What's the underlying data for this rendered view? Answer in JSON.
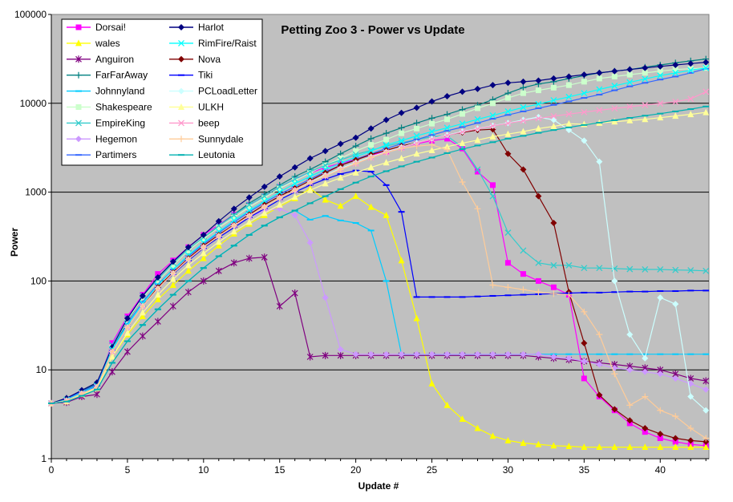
{
  "chart_data": {
    "type": "line",
    "title": "Petting Zoo 3 - Power vs Update",
    "xlabel": "Update #",
    "ylabel": "Power",
    "y_scale": "log",
    "xlim": [
      0,
      43.2
    ],
    "ylim": [
      1,
      100000
    ],
    "x_ticks": [
      "0",
      "5",
      "10",
      "15",
      "20",
      "25",
      "30",
      "35",
      "40"
    ],
    "y_ticks": [
      "1",
      "10",
      "100",
      "1000",
      "10000",
      "100000"
    ],
    "plot_background": "#c0c0c0",
    "grid": "major horizontal",
    "legend_position": "top-left",
    "series": [
      {
        "name": "Dorsai!",
        "color": "#ff00ff",
        "marker": "square",
        "values": [
          4.2,
          4.5,
          5.4,
          6.5,
          20,
          40,
          70,
          120,
          170,
          240,
          330,
          430,
          560,
          720,
          900,
          1150,
          1400,
          1650,
          1900,
          2100,
          2350,
          2600,
          2850,
          3200,
          3500,
          3800,
          4000,
          3100,
          1700,
          1200,
          160,
          120,
          100,
          85,
          70,
          8,
          5,
          3.5,
          2.5,
          2,
          1.7,
          1.55,
          1.45,
          1.4
        ]
      },
      {
        "name": "wales",
        "color": "#ffff00",
        "marker": "triangle",
        "values": [
          4.2,
          4.4,
          5.3,
          6.2,
          14,
          25,
          40,
          62,
          90,
          130,
          180,
          250,
          340,
          440,
          550,
          690,
          850,
          1100,
          820,
          700,
          900,
          680,
          550,
          170,
          38,
          7,
          4,
          2.8,
          2.2,
          1.8,
          1.6,
          1.5,
          1.45,
          1.4,
          1.38,
          1.35,
          1.35,
          1.35,
          1.35,
          1.35,
          1.35,
          1.35,
          1.35,
          1.35
        ]
      },
      {
        "name": "Anguiron",
        "color": "#800080",
        "marker": "star",
        "values": [
          4.2,
          4.3,
          5,
          5.3,
          9.5,
          16,
          24,
          35,
          52,
          75,
          100,
          130,
          160,
          180,
          185,
          52,
          73,
          14,
          14.5,
          14.5,
          14.5,
          14.5,
          14.5,
          14.5,
          14.5,
          14.5,
          14.5,
          14.5,
          14.5,
          14.5,
          14.5,
          14.5,
          14,
          13.5,
          13,
          12.5,
          12,
          11.5,
          11,
          10.5,
          10,
          9,
          8,
          7.5
        ]
      },
      {
        "name": "FarFarAway",
        "color": "#008080",
        "marker": "plus",
        "values": [
          4.2,
          4.8,
          5.8,
          7,
          17,
          35,
          65,
          100,
          150,
          220,
          300,
          420,
          560,
          750,
          950,
          1200,
          1500,
          1800,
          2200,
          2700,
          3300,
          4000,
          4600,
          5300,
          6000,
          6800,
          7500,
          8500,
          9500,
          11000,
          13000,
          15000,
          16500,
          17500,
          19000,
          20500,
          22000,
          23000,
          24000,
          25500,
          27000,
          28500,
          30000,
          31500
        ]
      },
      {
        "name": "Johnnyland",
        "color": "#00ccff",
        "marker": "dash",
        "values": [
          4.2,
          4.4,
          5.1,
          6,
          12,
          21,
          32,
          48,
          70,
          100,
          140,
          190,
          250,
          330,
          420,
          520,
          620,
          490,
          540,
          480,
          450,
          370,
          100,
          15,
          15,
          15,
          15,
          15,
          15,
          15,
          15,
          15,
          15,
          15,
          15,
          15,
          15,
          15,
          15,
          15,
          15,
          15,
          15,
          15
        ]
      },
      {
        "name": "Shakespeare",
        "color": "#ccffcc",
        "marker": "square",
        "values": [
          4.2,
          4.5,
          5.5,
          6.6,
          18,
          36,
          65,
          100,
          150,
          220,
          300,
          400,
          520,
          680,
          860,
          1100,
          1350,
          1650,
          2000,
          2400,
          2900,
          3400,
          3900,
          4600,
          5200,
          5900,
          6600,
          7600,
          8800,
          10000,
          11500,
          13000,
          14000,
          15000,
          16000,
          17500,
          19000,
          20000,
          21000,
          22000,
          23000,
          24000,
          24500,
          25000
        ]
      },
      {
        "name": "EmpireKing",
        "color": "#33cccc",
        "marker": "x",
        "values": [
          4.2,
          4.6,
          5.6,
          6.8,
          19,
          38,
          68,
          105,
          160,
          230,
          310,
          420,
          550,
          720,
          900,
          1150,
          1400,
          1700,
          2000,
          2300,
          2650,
          2950,
          3300,
          3600,
          3900,
          4200,
          4300,
          3200,
          1800,
          900,
          350,
          220,
          160,
          150,
          150,
          140,
          140,
          138,
          136,
          135,
          135,
          133,
          132,
          130
        ]
      },
      {
        "name": "Hegemon",
        "color": "#cc99ff",
        "marker": "diamond",
        "values": [
          4.2,
          4.5,
          5.4,
          6.3,
          16,
          30,
          52,
          85,
          125,
          180,
          250,
          330,
          420,
          520,
          620,
          650,
          550,
          270,
          65,
          17,
          15,
          15,
          15,
          15,
          15,
          15,
          15,
          15,
          15,
          15,
          15,
          15,
          15,
          14,
          13.5,
          12.5,
          11.5,
          10.5,
          10,
          9.5,
          9,
          8,
          7,
          6
        ]
      },
      {
        "name": "Partimers",
        "color": "#3366ff",
        "marker": "dash",
        "values": [
          4.2,
          4.7,
          5.7,
          6.8,
          17,
          33,
          58,
          92,
          135,
          190,
          260,
          350,
          460,
          600,
          760,
          950,
          1150,
          1400,
          1700,
          2000,
          2350,
          2700,
          3100,
          3500,
          3900,
          4400,
          4900,
          5400,
          6000,
          6700,
          7400,
          8100,
          8800,
          9600,
          10500,
          11500,
          12500,
          14000,
          15500,
          17000,
          18500,
          20000,
          22000,
          24500
        ]
      },
      {
        "name": "Harlot",
        "color": "#000080",
        "marker": "diamond",
        "values": [
          4.2,
          4.8,
          5.9,
          7.2,
          18,
          38,
          68,
          110,
          165,
          240,
          330,
          470,
          650,
          870,
          1150,
          1500,
          1900,
          2400,
          2900,
          3500,
          4100,
          5200,
          6500,
          7800,
          8900,
          10500,
          12000,
          13500,
          14500,
          16000,
          17000,
          17500,
          18000,
          19000,
          20000,
          21000,
          22000,
          23000,
          24000,
          25000,
          26000,
          27000,
          28000,
          29000
        ]
      },
      {
        "name": "RimFire/Raist",
        "color": "#00ffff",
        "marker": "x",
        "values": [
          4.2,
          4.6,
          5.5,
          6.6,
          17,
          32,
          56,
          90,
          135,
          195,
          270,
          360,
          480,
          620,
          790,
          1000,
          1250,
          1500,
          1800,
          2100,
          2500,
          2900,
          3400,
          3800,
          4300,
          4800,
          5300,
          5900,
          6600,
          7300,
          8100,
          9000,
          9800,
          10800,
          11800,
          13000,
          14300,
          15700,
          17200,
          18800,
          20500,
          22000,
          23500,
          25000
        ]
      },
      {
        "name": "Nova",
        "color": "#800000",
        "marker": "diamond",
        "values": [
          4.2,
          4.5,
          5.4,
          6.4,
          16,
          30,
          52,
          85,
          125,
          180,
          250,
          330,
          430,
          560,
          720,
          900,
          1100,
          1350,
          1650,
          2000,
          2300,
          2650,
          2950,
          3300,
          3600,
          4000,
          4400,
          4700,
          5000,
          5100,
          2700,
          1800,
          900,
          450,
          75,
          20,
          5.2,
          3.6,
          2.7,
          2.2,
          1.9,
          1.7,
          1.6,
          1.55
        ]
      },
      {
        "name": "Tiki",
        "color": "#0000ff",
        "marker": "dash",
        "values": [
          4.2,
          4.5,
          5.4,
          6.5,
          16,
          30,
          52,
          82,
          120,
          170,
          235,
          310,
          400,
          520,
          650,
          820,
          1000,
          1200,
          1400,
          1600,
          1750,
          1700,
          1200,
          600,
          66,
          66,
          66,
          66,
          67,
          68,
          69,
          70,
          71,
          72,
          73,
          74,
          74,
          75,
          76,
          76,
          77,
          77,
          78,
          78
        ]
      },
      {
        "name": "PCLoadLetter",
        "color": "#ccffff",
        "marker": "diamond",
        "values": [
          4.2,
          4.5,
          5.4,
          6.4,
          16,
          30,
          52,
          82,
          122,
          175,
          240,
          320,
          420,
          540,
          680,
          860,
          1050,
          1300,
          1550,
          1850,
          2150,
          2500,
          2850,
          3200,
          3600,
          4000,
          4400,
          4800,
          5200,
          5600,
          6000,
          6500,
          7000,
          6500,
          5000,
          3800,
          2200,
          100,
          25,
          13.5,
          65,
          55,
          5,
          3.5
        ]
      },
      {
        "name": "ULKH",
        "color": "#ffff99",
        "marker": "triangle",
        "values": [
          4.2,
          4.4,
          5.3,
          6.2,
          14,
          26,
          44,
          70,
          105,
          150,
          205,
          275,
          360,
          460,
          580,
          720,
          880,
          1050,
          1250,
          1450,
          1650,
          1900,
          2150,
          2400,
          2700,
          2950,
          3250,
          3550,
          3850,
          4200,
          4500,
          4800,
          5200,
          5500,
          5900,
          5800,
          6000,
          6200,
          6400,
          6600,
          6900,
          7200,
          7500,
          7900
        ]
      },
      {
        "name": "beep",
        "color": "#ff99cc",
        "marker": "x",
        "values": [
          4.2,
          4.5,
          5.4,
          6.4,
          16,
          30,
          52,
          82,
          122,
          175,
          240,
          320,
          420,
          540,
          680,
          860,
          1050,
          1280,
          1520,
          1800,
          2100,
          2450,
          2800,
          3150,
          3550,
          3950,
          4350,
          4750,
          5150,
          5550,
          5950,
          6350,
          6750,
          7150,
          7550,
          7950,
          8350,
          8750,
          9150,
          9550,
          9950,
          10400,
          11200,
          13500
        ]
      },
      {
        "name": "Sunnydale",
        "color": "#ffcc99",
        "marker": "plus",
        "values": [
          4.2,
          4.5,
          5.4,
          6.4,
          16,
          30,
          52,
          82,
          122,
          175,
          240,
          320,
          420,
          540,
          680,
          860,
          1050,
          1280,
          1520,
          1800,
          2100,
          2450,
          2800,
          3100,
          3300,
          3400,
          3000,
          1300,
          650,
          90,
          85,
          80,
          75,
          72,
          70,
          45,
          25,
          9,
          4,
          5,
          3.5,
          3,
          2.2,
          1.7
        ]
      },
      {
        "name": "Leutonia",
        "color": "#00b0b0",
        "marker": "dash",
        "values": [
          4.2,
          4.4,
          5.1,
          6,
          12,
          21,
          32,
          48,
          70,
          100,
          140,
          190,
          250,
          330,
          420,
          520,
          620,
          750,
          900,
          1080,
          1280,
          1500,
          1720,
          1950,
          2200,
          2450,
          2750,
          3050,
          3350,
          3650,
          4000,
          4300,
          4650,
          5000,
          5350,
          5700,
          6050,
          6450,
          6850,
          7250,
          7650,
          8100,
          8600,
          9200
        ]
      }
    ]
  }
}
